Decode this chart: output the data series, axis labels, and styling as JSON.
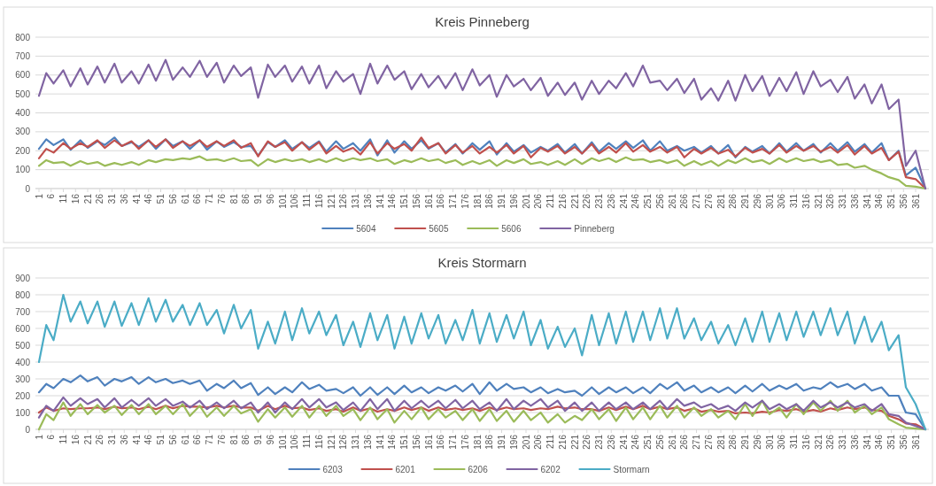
{
  "chart_data": [
    {
      "type": "line",
      "title": "Kreis Pinneberg",
      "ylim": [
        0,
        800
      ],
      "yticks": [
        0,
        100,
        200,
        300,
        400,
        500,
        600,
        700,
        800
      ],
      "xlim": [
        1,
        365
      ],
      "xticks": [
        1,
        6,
        11,
        16,
        21,
        26,
        31,
        36,
        41,
        46,
        51,
        56,
        61,
        66,
        71,
        76,
        81,
        86,
        91,
        96,
        101,
        106,
        111,
        116,
        121,
        126,
        131,
        136,
        141,
        146,
        151,
        156,
        161,
        166,
        171,
        176,
        181,
        186,
        191,
        196,
        201,
        206,
        211,
        216,
        221,
        226,
        231,
        236,
        241,
        246,
        251,
        256,
        261,
        266,
        271,
        276,
        281,
        286,
        291,
        296,
        301,
        306,
        311,
        316,
        321,
        326,
        331,
        336,
        341,
        346,
        351,
        356,
        361
      ],
      "grid": "y",
      "legend": "bottom",
      "marker": "none",
      "line_style": "solid",
      "x": [
        1,
        4,
        7,
        11,
        14,
        18,
        21,
        25,
        28,
        32,
        35,
        39,
        42,
        46,
        49,
        53,
        56,
        60,
        63,
        67,
        70,
        74,
        77,
        81,
        84,
        88,
        91,
        95,
        98,
        102,
        105,
        109,
        112,
        116,
        119,
        123,
        126,
        130,
        133,
        137,
        140,
        144,
        147,
        151,
        154,
        158,
        161,
        165,
        168,
        172,
        175,
        179,
        182,
        186,
        189,
        193,
        196,
        200,
        203,
        207,
        210,
        214,
        217,
        221,
        224,
        228,
        231,
        235,
        238,
        242,
        245,
        249,
        252,
        256,
        259,
        263,
        266,
        270,
        273,
        277,
        280,
        284,
        287,
        291,
        294,
        298,
        301,
        305,
        308,
        312,
        315,
        319,
        322,
        326,
        329,
        333,
        336,
        340,
        343,
        347,
        350,
        354,
        357,
        361,
        365
      ],
      "series": [
        {
          "name": "5604",
          "color": "#4f81bd",
          "values": [
            210,
            260,
            230,
            260,
            205,
            255,
            215,
            250,
            230,
            270,
            225,
            245,
            220,
            255,
            210,
            260,
            225,
            250,
            210,
            255,
            205,
            250,
            220,
            245,
            220,
            225,
            175,
            245,
            220,
            255,
            210,
            245,
            215,
            250,
            195,
            250,
            210,
            240,
            200,
            260,
            175,
            255,
            190,
            250,
            210,
            255,
            210,
            240,
            190,
            235,
            185,
            240,
            205,
            250,
            180,
            240,
            195,
            230,
            190,
            220,
            200,
            235,
            190,
            235,
            185,
            245,
            195,
            240,
            210,
            250,
            215,
            255,
            200,
            250,
            200,
            225,
            200,
            220,
            190,
            225,
            185,
            230,
            165,
            220,
            195,
            225,
            185,
            240,
            195,
            240,
            200,
            235,
            190,
            240,
            200,
            245,
            195,
            235,
            190,
            240,
            150,
            200,
            70,
            110,
            0
          ]
        },
        {
          "name": "5605",
          "color": "#c0504d",
          "values": [
            160,
            210,
            190,
            240,
            210,
            240,
            220,
            255,
            215,
            255,
            225,
            250,
            210,
            255,
            220,
            260,
            215,
            250,
            225,
            255,
            220,
            250,
            225,
            255,
            215,
            240,
            170,
            250,
            220,
            245,
            200,
            245,
            205,
            245,
            185,
            225,
            195,
            215,
            180,
            245,
            185,
            240,
            210,
            235,
            200,
            270,
            215,
            240,
            185,
            230,
            190,
            225,
            185,
            220,
            190,
            230,
            185,
            225,
            165,
            215,
            195,
            225,
            185,
            220,
            185,
            235,
            185,
            220,
            190,
            240,
            195,
            230,
            195,
            220,
            190,
            220,
            165,
            210,
            185,
            215,
            185,
            205,
            170,
            215,
            190,
            210,
            185,
            230,
            190,
            225,
            200,
            225,
            195,
            220,
            190,
            230,
            180,
            225,
            185,
            215,
            150,
            195,
            60,
            50,
            0
          ]
        },
        {
          "name": "5606",
          "color": "#9bbb59",
          "values": [
            120,
            150,
            135,
            140,
            120,
            145,
            130,
            140,
            120,
            135,
            125,
            140,
            125,
            150,
            140,
            155,
            150,
            160,
            155,
            170,
            150,
            155,
            145,
            160,
            145,
            150,
            120,
            155,
            140,
            155,
            145,
            155,
            140,
            155,
            140,
            160,
            145,
            160,
            150,
            160,
            145,
            155,
            130,
            150,
            140,
            160,
            145,
            155,
            135,
            150,
            125,
            145,
            130,
            150,
            120,
            150,
            135,
            155,
            130,
            140,
            125,
            145,
            125,
            155,
            130,
            160,
            145,
            160,
            140,
            165,
            150,
            155,
            140,
            150,
            135,
            150,
            120,
            145,
            125,
            145,
            120,
            150,
            135,
            160,
            140,
            150,
            130,
            160,
            140,
            160,
            145,
            155,
            140,
            150,
            125,
            130,
            110,
            120,
            100,
            80,
            60,
            45,
            15,
            10,
            0
          ]
        },
        {
          "name": "Pinneberg",
          "color": "#8064a2",
          "values": [
            490,
            610,
            555,
            625,
            540,
            635,
            550,
            645,
            560,
            660,
            560,
            620,
            555,
            655,
            570,
            680,
            575,
            640,
            590,
            675,
            590,
            665,
            560,
            650,
            595,
            640,
            480,
            655,
            590,
            650,
            565,
            645,
            555,
            650,
            530,
            620,
            565,
            605,
            500,
            660,
            555,
            650,
            575,
            620,
            525,
            605,
            535,
            595,
            530,
            610,
            520,
            630,
            545,
            600,
            485,
            600,
            540,
            580,
            520,
            585,
            490,
            560,
            495,
            560,
            470,
            570,
            500,
            570,
            530,
            610,
            540,
            650,
            560,
            570,
            520,
            580,
            505,
            580,
            470,
            530,
            465,
            570,
            465,
            600,
            515,
            595,
            490,
            585,
            515,
            615,
            500,
            620,
            540,
            575,
            510,
            590,
            475,
            550,
            450,
            550,
            420,
            470,
            120,
            200,
            0
          ]
        }
      ]
    },
    {
      "type": "line",
      "title": "Kreis Stormarn",
      "ylim": [
        0,
        900
      ],
      "yticks": [
        0,
        100,
        200,
        300,
        400,
        500,
        600,
        700,
        800,
        900
      ],
      "xlim": [
        1,
        365
      ],
      "xticks": [
        1,
        6,
        11,
        16,
        21,
        26,
        31,
        36,
        41,
        46,
        51,
        56,
        61,
        66,
        71,
        76,
        81,
        86,
        91,
        96,
        101,
        106,
        111,
        116,
        121,
        126,
        131,
        136,
        141,
        146,
        151,
        156,
        161,
        166,
        171,
        176,
        181,
        186,
        191,
        196,
        201,
        206,
        211,
        216,
        221,
        226,
        231,
        236,
        241,
        246,
        251,
        256,
        261,
        266,
        271,
        276,
        281,
        286,
        291,
        296,
        301,
        306,
        311,
        316,
        321,
        326,
        331,
        336,
        341,
        346,
        351,
        356,
        361
      ],
      "grid": "y",
      "legend": "bottom",
      "marker": "none",
      "line_style": "solid",
      "x": [
        1,
        4,
        7,
        11,
        14,
        18,
        21,
        25,
        28,
        32,
        35,
        39,
        42,
        46,
        49,
        53,
        56,
        60,
        63,
        67,
        70,
        74,
        77,
        81,
        84,
        88,
        91,
        95,
        98,
        102,
        105,
        109,
        112,
        116,
        119,
        123,
        126,
        130,
        133,
        137,
        140,
        144,
        147,
        151,
        154,
        158,
        161,
        165,
        168,
        172,
        175,
        179,
        182,
        186,
        189,
        193,
        196,
        200,
        203,
        207,
        210,
        214,
        217,
        221,
        224,
        228,
        231,
        235,
        238,
        242,
        245,
        249,
        252,
        256,
        259,
        263,
        266,
        270,
        273,
        277,
        280,
        284,
        287,
        291,
        294,
        298,
        301,
        305,
        308,
        312,
        315,
        319,
        322,
        326,
        329,
        333,
        336,
        340,
        343,
        347,
        350,
        354,
        357,
        361,
        365
      ],
      "series": [
        {
          "name": "6203",
          "color": "#4f81bd",
          "values": [
            220,
            270,
            245,
            300,
            280,
            320,
            285,
            310,
            260,
            300,
            285,
            310,
            270,
            310,
            280,
            300,
            275,
            290,
            270,
            290,
            230,
            270,
            245,
            290,
            245,
            275,
            205,
            250,
            210,
            250,
            220,
            280,
            240,
            265,
            230,
            240,
            215,
            250,
            200,
            250,
            205,
            250,
            210,
            260,
            220,
            250,
            215,
            250,
            230,
            260,
            225,
            270,
            210,
            280,
            230,
            270,
            240,
            250,
            220,
            250,
            215,
            240,
            220,
            230,
            200,
            250,
            210,
            250,
            220,
            250,
            215,
            250,
            215,
            270,
            240,
            280,
            230,
            260,
            220,
            250,
            220,
            250,
            215,
            260,
            225,
            270,
            230,
            260,
            240,
            270,
            230,
            250,
            240,
            280,
            250,
            270,
            240,
            270,
            230,
            250,
            200,
            200,
            100,
            90,
            0
          ]
        },
        {
          "name": "6201",
          "color": "#c0504d",
          "values": [
            100,
            130,
            110,
            125,
            120,
            125,
            125,
            130,
            120,
            135,
            125,
            130,
            120,
            135,
            120,
            140,
            125,
            140,
            135,
            135,
            130,
            140,
            130,
            140,
            130,
            130,
            110,
            140,
            120,
            140,
            125,
            130,
            115,
            125,
            110,
            120,
            105,
            130,
            110,
            125,
            105,
            120,
            110,
            130,
            115,
            130,
            110,
            130,
            115,
            125,
            115,
            125,
            110,
            130,
            115,
            130,
            120,
            125,
            115,
            125,
            120,
            135,
            125,
            130,
            120,
            120,
            110,
            130,
            115,
            135,
            120,
            140,
            120,
            135,
            120,
            130,
            110,
            125,
            105,
            115,
            105,
            110,
            95,
            100,
            95,
            105,
            100,
            115,
            110,
            120,
            105,
            115,
            105,
            125,
            115,
            130,
            120,
            130,
            115,
            110,
            80,
            60,
            35,
            30,
            0
          ]
        },
        {
          "name": "6206",
          "color": "#9bbb59",
          "values": [
            0,
            90,
            55,
            160,
            80,
            150,
            90,
            145,
            100,
            140,
            85,
            145,
            90,
            150,
            90,
            140,
            90,
            150,
            80,
            140,
            75,
            130,
            80,
            140,
            95,
            120,
            45,
            120,
            70,
            130,
            75,
            140,
            70,
            140,
            80,
            140,
            80,
            120,
            55,
            130,
            60,
            120,
            40,
            110,
            60,
            130,
            60,
            120,
            70,
            110,
            55,
            120,
            50,
            120,
            50,
            110,
            45,
            110,
            55,
            100,
            40,
            90,
            40,
            80,
            55,
            120,
            60,
            120,
            50,
            130,
            60,
            130,
            60,
            140,
            70,
            140,
            70,
            130,
            80,
            120,
            70,
            110,
            60,
            150,
            80,
            170,
            90,
            130,
            70,
            150,
            90,
            160,
            110,
            170,
            110,
            170,
            100,
            140,
            90,
            130,
            60,
            30,
            10,
            5,
            0
          ]
        },
        {
          "name": "6202",
          "color": "#8064a2",
          "values": [
            70,
            140,
            110,
            190,
            140,
            185,
            150,
            180,
            130,
            185,
            130,
            175,
            140,
            185,
            140,
            180,
            140,
            165,
            130,
            170,
            120,
            160,
            125,
            170,
            125,
            160,
            100,
            160,
            100,
            160,
            120,
            180,
            130,
            180,
            130,
            160,
            115,
            160,
            110,
            180,
            120,
            180,
            110,
            170,
            125,
            170,
            130,
            170,
            125,
            175,
            125,
            170,
            120,
            160,
            110,
            180,
            120,
            170,
            140,
            180,
            130,
            170,
            110,
            160,
            110,
            160,
            110,
            160,
            120,
            160,
            120,
            160,
            120,
            170,
            120,
            180,
            140,
            160,
            130,
            150,
            120,
            140,
            110,
            160,
            130,
            170,
            120,
            150,
            120,
            150,
            110,
            170,
            130,
            160,
            130,
            160,
            130,
            150,
            110,
            150,
            90,
            80,
            40,
            20,
            0
          ]
        },
        {
          "name": "Stormarn",
          "color": "#4bacc6",
          "values": [
            400,
            620,
            530,
            800,
            640,
            760,
            630,
            760,
            610,
            760,
            615,
            750,
            620,
            780,
            640,
            770,
            640,
            740,
            620,
            750,
            620,
            710,
            570,
            740,
            600,
            710,
            480,
            640,
            510,
            700,
            530,
            720,
            570,
            700,
            560,
            680,
            500,
            640,
            490,
            690,
            530,
            680,
            480,
            670,
            510,
            690,
            540,
            680,
            510,
            650,
            530,
            710,
            510,
            690,
            520,
            680,
            540,
            700,
            500,
            650,
            480,
            610,
            490,
            600,
            440,
            680,
            500,
            690,
            510,
            700,
            520,
            700,
            530,
            720,
            540,
            720,
            540,
            660,
            530,
            640,
            510,
            620,
            500,
            660,
            520,
            700,
            520,
            690,
            530,
            700,
            550,
            700,
            560,
            720,
            560,
            700,
            510,
            670,
            520,
            640,
            470,
            560,
            250,
            150,
            0
          ]
        }
      ]
    }
  ]
}
